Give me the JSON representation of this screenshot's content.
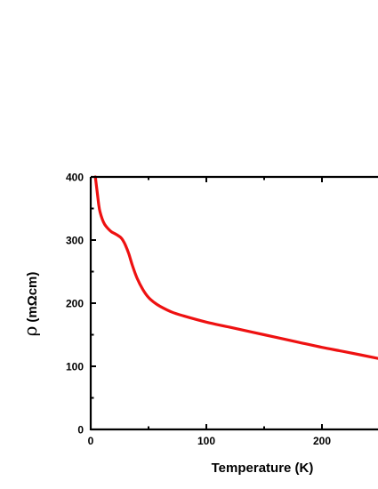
{
  "chart_data": {
    "type": "line",
    "xlabel": "Temperature (K)",
    "ylabel_symbol": "ρ",
    "ylabel_unit": "(mΩcm)",
    "xlim": [
      0,
      250
    ],
    "ylim": [
      0,
      400
    ],
    "x_ticks": [
      0,
      100,
      200
    ],
    "x_minor_ticks": [
      50,
      150,
      250
    ],
    "y_ticks": [
      0,
      100,
      200,
      300,
      400
    ],
    "y_minor_ticks": [
      50,
      150,
      250,
      350
    ],
    "grid": false,
    "line_color": "#ee1111",
    "series": [
      {
        "x": [
          4,
          5,
          6,
          7,
          8,
          10,
          12,
          15,
          18,
          22,
          26,
          28,
          30,
          33,
          36,
          40,
          45,
          50,
          55,
          60,
          70,
          80,
          100,
          120,
          150,
          180,
          200,
          220,
          250
        ],
        "y": [
          400,
          385,
          370,
          355,
          345,
          333,
          325,
          318,
          313,
          309,
          304,
          299,
          292,
          278,
          260,
          240,
          222,
          209,
          201,
          195,
          186,
          180,
          170,
          162,
          150,
          138,
          130,
          123,
          112
        ]
      }
    ]
  }
}
